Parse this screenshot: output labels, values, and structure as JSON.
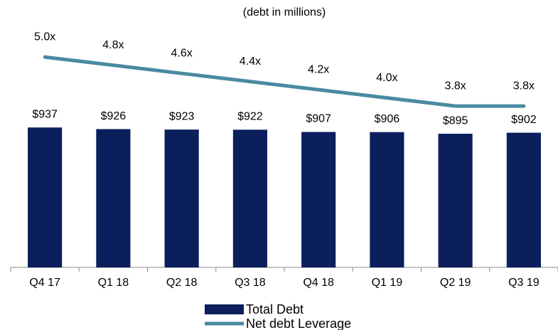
{
  "chart_data": {
    "type": "bar_line",
    "title": "(debt in millions)",
    "categories": [
      "Q4 17",
      "Q1 18",
      "Q2 18",
      "Q3 18",
      "Q4 18",
      "Q1 19",
      "Q2 19",
      "Q3 19"
    ],
    "series": [
      {
        "name": "Total Debt",
        "type": "bar",
        "color": "#0b1f5c",
        "values": [
          937,
          926,
          923,
          922,
          907,
          906,
          895,
          902
        ],
        "value_labels": [
          "$937",
          "$926",
          "$923",
          "$922",
          "$907",
          "$906",
          "$895",
          "$902"
        ]
      },
      {
        "name": "Net debt Leverage",
        "type": "line",
        "axis": "y2",
        "color": "#4a8aa0",
        "values": [
          5.0,
          4.8,
          4.6,
          4.4,
          4.2,
          4.0,
          3.8,
          3.8
        ],
        "value_labels": [
          "5.0x",
          "4.8x",
          "4.6x",
          "4.4x",
          "4.2x",
          "4.0x",
          "3.8x",
          "3.8x"
        ]
      }
    ],
    "ylim": [
      0,
      1600
    ],
    "y2lim": [
      -0.15,
      5.7
    ]
  }
}
